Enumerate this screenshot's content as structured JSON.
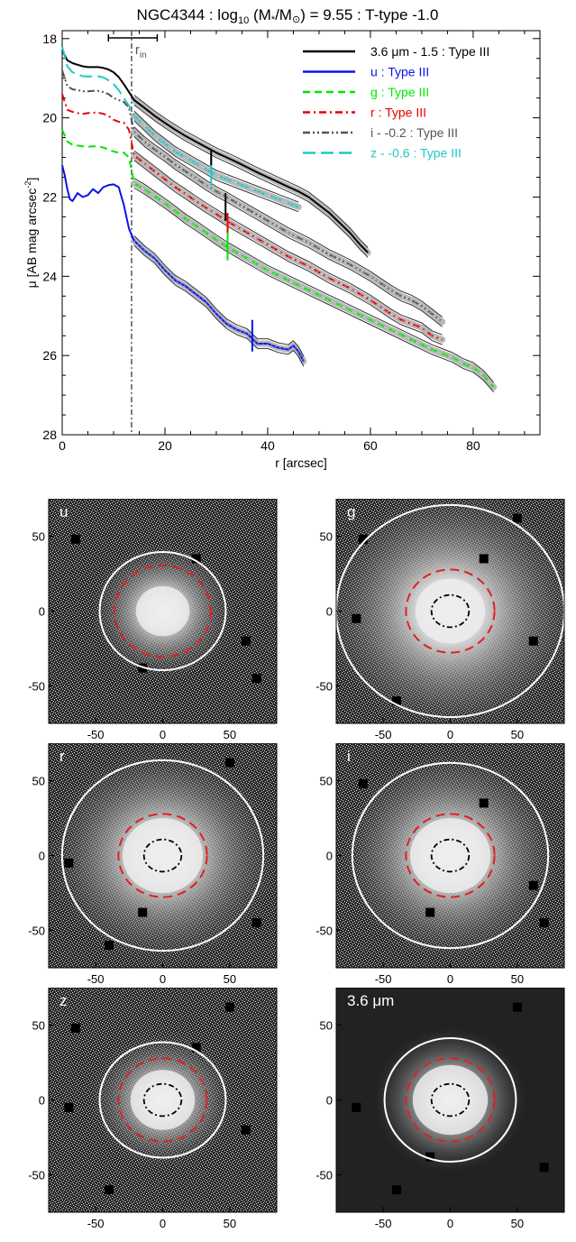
{
  "chart_data": [
    {
      "type": "line",
      "title": "NGC4344 : log10 (M*/M⊙) = 9.55 : T-type -1.0",
      "title_parts": {
        "name": "NGC4344 : log",
        "sub": "10",
        "mid": " (M",
        "star": "*",
        "slash": "/M",
        "sun": "⊙",
        "rest": ") = 9.55 : T-type -1.0"
      },
      "xlabel": "r [arcsec]",
      "ylabel_parts": {
        "main": "μ [AB mag arcsec",
        "sup": "-2",
        "close": "]"
      },
      "xlim": [
        0,
        93
      ],
      "ylim": [
        28,
        17.8
      ],
      "y_inverted": true,
      "xticks": [
        0,
        20,
        40,
        60,
        80
      ],
      "yticks": [
        18,
        20,
        22,
        24,
        26,
        28
      ],
      "grid": false,
      "legend_position": "top-right",
      "r_in": 13.5,
      "r_in_label": {
        "main": "r",
        "sub": "in"
      },
      "r_in_errorbar": [
        9,
        18.5
      ],
      "series": [
        {
          "name": "3.6 μm - 1.5 : Type III",
          "color": "#000000",
          "dash": "",
          "width": 2,
          "x": [
            0,
            1,
            2,
            3,
            4,
            5,
            6,
            7,
            8,
            9,
            10,
            11,
            12,
            13,
            14,
            16,
            18,
            20,
            22,
            24,
            26,
            28,
            30,
            32,
            34,
            36,
            38,
            40,
            42,
            44,
            46,
            48,
            50,
            52,
            54,
            56,
            58,
            59.5
          ],
          "y": [
            18.3,
            18.55,
            18.62,
            18.66,
            18.7,
            18.72,
            18.72,
            18.72,
            18.74,
            18.78,
            18.85,
            18.97,
            19.15,
            19.35,
            19.55,
            19.75,
            19.95,
            20.13,
            20.3,
            20.46,
            20.6,
            20.74,
            20.88,
            21.0,
            21.12,
            21.25,
            21.38,
            21.5,
            21.62,
            21.74,
            21.86,
            22.0,
            22.2,
            22.4,
            22.65,
            22.9,
            23.2,
            23.4
          ]
        },
        {
          "name": "u : Type III",
          "color": "#0a14e6",
          "dash": "",
          "width": 2,
          "x": [
            0,
            0.5,
            1,
            1.5,
            2,
            3,
            4,
            5,
            6,
            7,
            8,
            9,
            10,
            11,
            12,
            13,
            14,
            16,
            18,
            20,
            22,
            24,
            26,
            28,
            30,
            32,
            34,
            36,
            38,
            40,
            42,
            44,
            45,
            46,
            47
          ],
          "y": [
            21.2,
            21.45,
            21.8,
            22.05,
            22.1,
            21.9,
            22.0,
            21.95,
            21.8,
            21.9,
            21.75,
            21.7,
            21.68,
            21.75,
            22.2,
            22.8,
            23.1,
            23.35,
            23.55,
            23.85,
            24.1,
            24.25,
            24.45,
            24.65,
            24.95,
            25.2,
            25.35,
            25.45,
            25.7,
            25.7,
            25.8,
            25.85,
            25.75,
            25.9,
            26.15
          ]
        },
        {
          "name": "g : Type III",
          "color": "#00e600",
          "dash": "8,5",
          "width": 2,
          "x": [
            0,
            1,
            2,
            3,
            4,
            5,
            6,
            7,
            8,
            9,
            10,
            11,
            12,
            13,
            14,
            16,
            18,
            20,
            22,
            24,
            26,
            28,
            30,
            32,
            34,
            36,
            38,
            40,
            44,
            48,
            52,
            56,
            60,
            64,
            68,
            72,
            74,
            76,
            78,
            80,
            82,
            84
          ],
          "y": [
            20.3,
            20.6,
            20.68,
            20.7,
            20.72,
            20.73,
            20.72,
            20.72,
            20.75,
            20.8,
            20.85,
            20.88,
            20.88,
            21.0,
            21.65,
            21.8,
            21.98,
            22.16,
            22.35,
            22.55,
            22.72,
            22.9,
            23.08,
            23.25,
            23.4,
            23.55,
            23.7,
            23.85,
            24.1,
            24.35,
            24.6,
            24.85,
            25.1,
            25.35,
            25.6,
            25.85,
            25.95,
            26.05,
            26.2,
            26.3,
            26.5,
            26.8
          ]
        },
        {
          "name": "r : Type III",
          "color": "#e60000",
          "dash": "8,4,2,4",
          "width": 2,
          "x": [
            0,
            1,
            2,
            3,
            4,
            5,
            6,
            7,
            8,
            9,
            10,
            11,
            12,
            13,
            14,
            16,
            18,
            20,
            22,
            24,
            26,
            28,
            30,
            32,
            34,
            36,
            38,
            40,
            44,
            48,
            52,
            56,
            60,
            64,
            66,
            68,
            70,
            72,
            74
          ],
          "y": [
            19.4,
            19.8,
            19.85,
            19.88,
            19.9,
            19.88,
            19.87,
            19.87,
            19.9,
            19.95,
            20.05,
            20.1,
            20.12,
            20.3,
            20.95,
            21.15,
            21.35,
            21.55,
            21.75,
            21.92,
            22.1,
            22.27,
            22.43,
            22.6,
            22.75,
            22.9,
            23.05,
            23.2,
            23.5,
            23.75,
            24.05,
            24.3,
            24.6,
            24.95,
            25.1,
            25.2,
            25.3,
            25.5,
            25.6
          ]
        },
        {
          "name": "i - -0.2 : Type III",
          "color": "#555555",
          "dash": "8,3,2,3,2,3",
          "width": 2,
          "x": [
            0,
            1,
            2,
            3,
            4,
            5,
            6,
            7,
            8,
            9,
            10,
            11,
            12,
            13,
            14,
            16,
            18,
            20,
            22,
            24,
            26,
            28,
            30,
            32,
            34,
            36,
            38,
            40,
            44,
            48,
            52,
            56,
            60,
            64,
            66,
            68,
            70,
            72,
            74
          ],
          "y": [
            18.8,
            19.2,
            19.28,
            19.3,
            19.33,
            19.33,
            19.32,
            19.32,
            19.35,
            19.4,
            19.5,
            19.55,
            19.6,
            19.75,
            20.35,
            20.6,
            20.8,
            20.98,
            21.18,
            21.35,
            21.52,
            21.7,
            21.86,
            22.0,
            22.15,
            22.3,
            22.45,
            22.6,
            22.9,
            23.15,
            23.45,
            23.7,
            24.0,
            24.35,
            24.5,
            24.6,
            24.75,
            24.95,
            25.15
          ]
        },
        {
          "name": "z - -0.6 : Type III",
          "color": "#20c8c8",
          "dash": "14,6",
          "width": 2,
          "x": [
            0,
            1,
            2,
            3,
            4,
            5,
            6,
            7,
            8,
            9,
            10,
            11,
            12,
            13,
            14,
            16,
            18,
            20,
            22,
            24,
            26,
            28,
            30,
            32,
            34,
            36,
            38,
            40,
            42,
            44,
            46
          ],
          "y": [
            18.2,
            18.7,
            18.85,
            18.9,
            18.95,
            18.96,
            18.95,
            18.95,
            18.98,
            19.05,
            19.15,
            19.3,
            19.5,
            19.7,
            19.95,
            20.2,
            20.45,
            20.65,
            20.85,
            21.0,
            21.15,
            21.3,
            21.45,
            21.55,
            21.65,
            21.75,
            21.85,
            21.95,
            22.05,
            22.15,
            22.25
          ]
        }
      ],
      "break_markers": [
        {
          "x": 29,
          "y_range": [
            20.9,
            21.7
          ],
          "color": "#20c8c8"
        },
        {
          "x": 29,
          "y_range": [
            20.8,
            21.2
          ],
          "color": "#000000"
        },
        {
          "x": 31.8,
          "y_range": [
            21.9,
            22.6
          ],
          "color": "#000000"
        },
        {
          "x": 32.2,
          "y_range": [
            22.4,
            23.4
          ],
          "color": "#e60000"
        },
        {
          "x": 32.2,
          "y_range": [
            22.9,
            23.6
          ],
          "color": "#00e600"
        },
        {
          "x": 37,
          "y_range": [
            25.1,
            25.9
          ],
          "color": "#0a14e6"
        }
      ]
    },
    {
      "type": "image_panels",
      "xlim": [
        -85,
        85
      ],
      "ylim": [
        -75,
        75
      ],
      "xticks": [
        -50,
        0,
        50
      ],
      "yticks": [
        -50,
        0,
        50
      ],
      "panels": [
        {
          "label": "u",
          "white_ellipse": [
            47,
            44
          ],
          "red_ellipse": [
            36,
            34
          ],
          "black_ellipse": null,
          "noisy": true,
          "core_radius": 20
        },
        {
          "label": "g",
          "white_ellipse": [
            85,
            79
          ],
          "red_ellipse": [
            33,
            31
          ],
          "black_ellipse": [
            14,
            12
          ],
          "noisy": true,
          "core_radius": 26
        },
        {
          "label": "r",
          "white_ellipse": [
            75,
            71
          ],
          "red_ellipse": [
            33,
            31
          ],
          "black_ellipse": [
            14,
            12
          ],
          "noisy": true,
          "core_radius": 30
        },
        {
          "label": "i",
          "white_ellipse": [
            73,
            69
          ],
          "red_ellipse": [
            33,
            31
          ],
          "black_ellipse": [
            14,
            12
          ],
          "noisy": true,
          "core_radius": 30
        },
        {
          "label": "z",
          "white_ellipse": [
            47,
            43
          ],
          "red_ellipse": [
            33,
            31
          ],
          "black_ellipse": [
            14,
            12
          ],
          "noisy": true,
          "core_radius": 24
        },
        {
          "label": "3.6 μm",
          "white_ellipse": [
            49,
            46
          ],
          "red_ellipse": [
            33,
            31
          ],
          "black_ellipse": [
            14,
            12
          ],
          "noisy": false,
          "core_radius": 28
        }
      ]
    }
  ]
}
